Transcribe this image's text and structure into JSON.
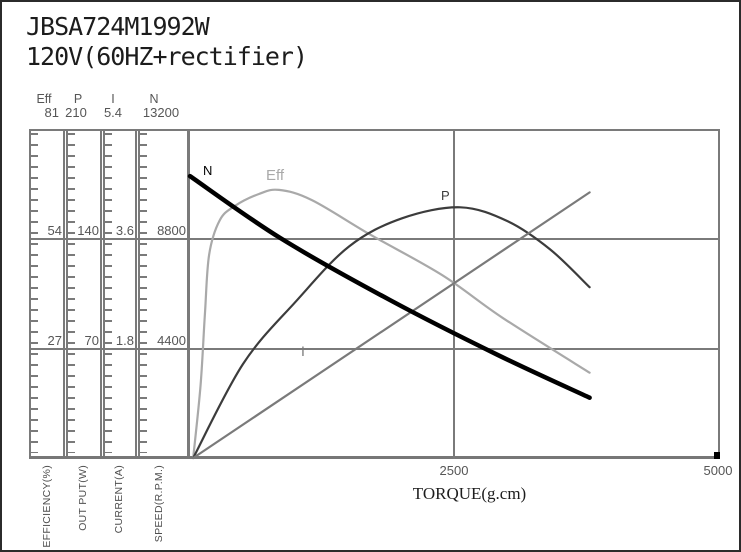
{
  "title": "JBSA724M1992W",
  "subtitle": "120V(60HZ+rectifier)",
  "chart_data": {
    "type": "line",
    "xlabel": "TORQUE(g.cm)",
    "x_range": [
      0,
      5000
    ],
    "x_tick_labels": [
      "2500",
      "5000"
    ],
    "grid": "horizontal lines at thirds, vertical line at 2500, outer frame on",
    "legend_position": "inline labels on curves",
    "axes": [
      {
        "header": "Eff",
        "max": 81,
        "ticks_labeled": [
          "81",
          "54",
          "27"
        ],
        "unit": "EFFICIENCY(%)"
      },
      {
        "header": "P",
        "max": 210,
        "ticks_labeled": [
          "210",
          "140",
          "70"
        ],
        "unit": "OUT PUT(W)"
      },
      {
        "header": "I",
        "max": 5.4,
        "ticks_labeled": [
          "5.4",
          "3.6",
          "1.8"
        ],
        "unit": "CURRENT(A)"
      },
      {
        "header": "N",
        "max": 13200,
        "ticks_labeled": [
          "13200",
          "8800",
          "4400"
        ],
        "unit": "SPEED(R.P.M.)"
      }
    ],
    "series": [
      {
        "name": "N",
        "axis": "N",
        "color": "#000000",
        "stroke_width": 4.5,
        "z": 1,
        "points": [
          [
            0,
            11310
          ],
          [
            850,
            8830
          ],
          [
            1880,
            6350
          ],
          [
            2910,
            4120
          ],
          [
            3770,
            2420
          ]
        ]
      },
      {
        "name": "Eff",
        "axis": "Eff",
        "color": "#a9a9a9",
        "stroke_width": 2.2,
        "z": 0,
        "points": [
          [
            30,
            0
          ],
          [
            100,
            18
          ],
          [
            140,
            35
          ],
          [
            180,
            50
          ],
          [
            280,
            58.5
          ],
          [
            420,
            62
          ],
          [
            650,
            65
          ],
          [
            840,
            66
          ],
          [
            1150,
            63.5
          ],
          [
            1700,
            55
          ],
          [
            2380,
            45
          ],
          [
            2950,
            34.5
          ],
          [
            3770,
            21
          ]
        ]
      },
      {
        "name": "P",
        "axis": "P",
        "color": "#3c3c3c",
        "stroke_width": 2.2,
        "z": 0,
        "points": [
          [
            30,
            0
          ],
          [
            500,
            60
          ],
          [
            1000,
            100
          ],
          [
            1500,
            135
          ],
          [
            2000,
            153
          ],
          [
            2550,
            160
          ],
          [
            3000,
            151
          ],
          [
            3400,
            133
          ],
          [
            3770,
            109
          ]
        ]
      },
      {
        "name": "I",
        "axis": "I",
        "color": "#7a7a7a",
        "stroke_width": 2.2,
        "z": 0,
        "points": [
          [
            30,
            0
          ],
          [
            3770,
            4.36
          ]
        ]
      }
    ]
  }
}
